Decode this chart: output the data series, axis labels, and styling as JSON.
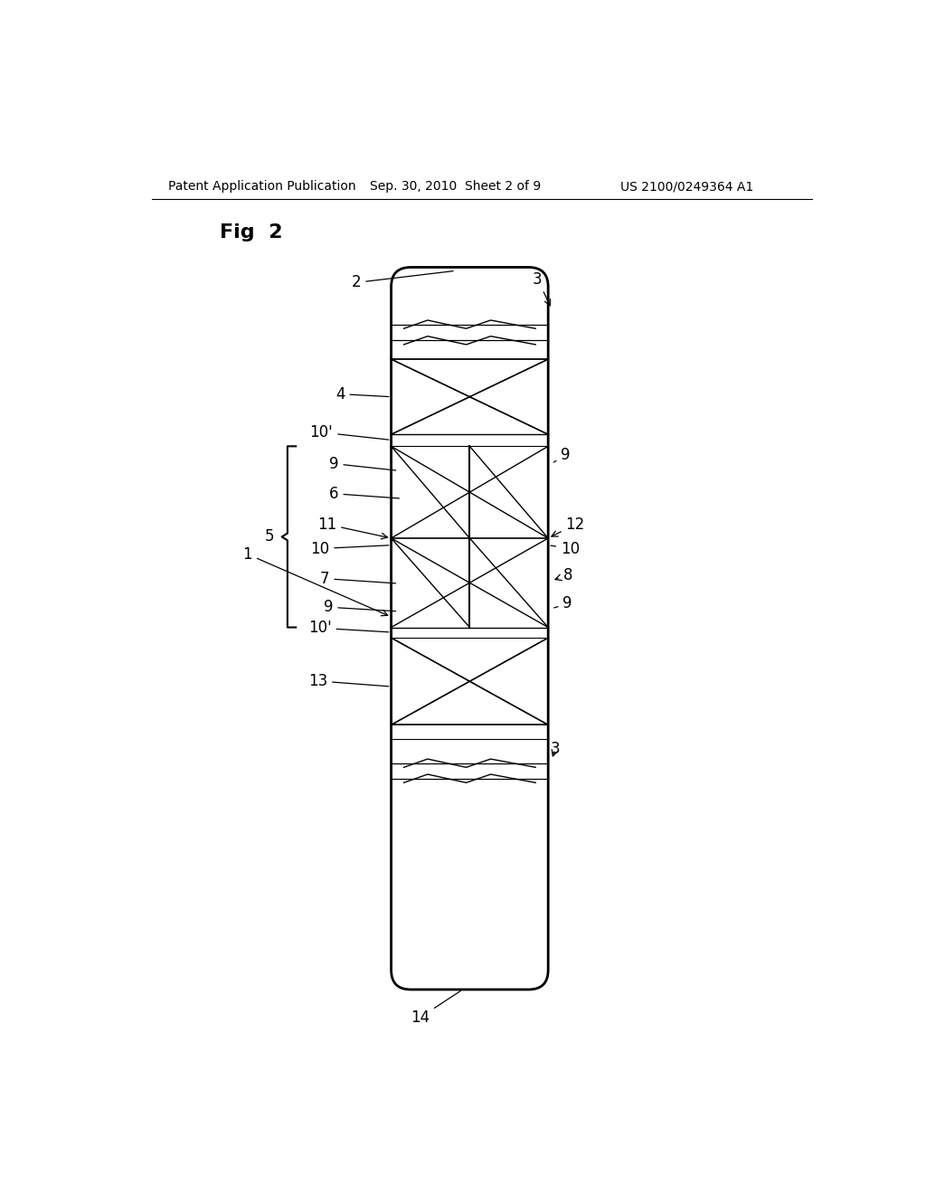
{
  "header_left": "Patent Application Publication",
  "header_mid": "Sep. 30, 2010  Sheet 2 of 9",
  "header_right": "US 2100/0249364 A1",
  "bg_color": "#ffffff",
  "lc": "#000000"
}
